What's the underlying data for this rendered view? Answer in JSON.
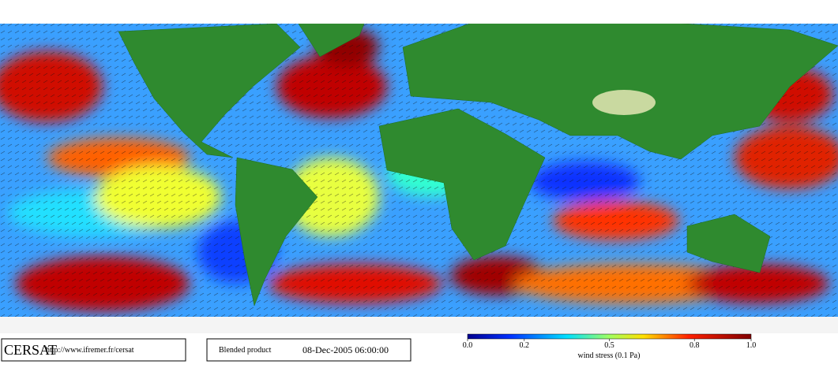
{
  "footer": {
    "logo": "CERSAT",
    "url": "http://www.ifremer.fr/cersat",
    "product": "Blended product",
    "date": "08-Dec-2005 06:00:00"
  },
  "colorbar": {
    "label": "wind stress (0.1 Pa)",
    "range": [
      0,
      1
    ],
    "ticks": [
      {
        "value": 0,
        "label": "0.0"
      },
      {
        "value": 0.2,
        "label": "0.2"
      },
      {
        "value": 0.5,
        "label": "0.5"
      },
      {
        "value": 0.8,
        "label": "0.8"
      },
      {
        "value": 1,
        "label": "1.0"
      }
    ]
  }
}
